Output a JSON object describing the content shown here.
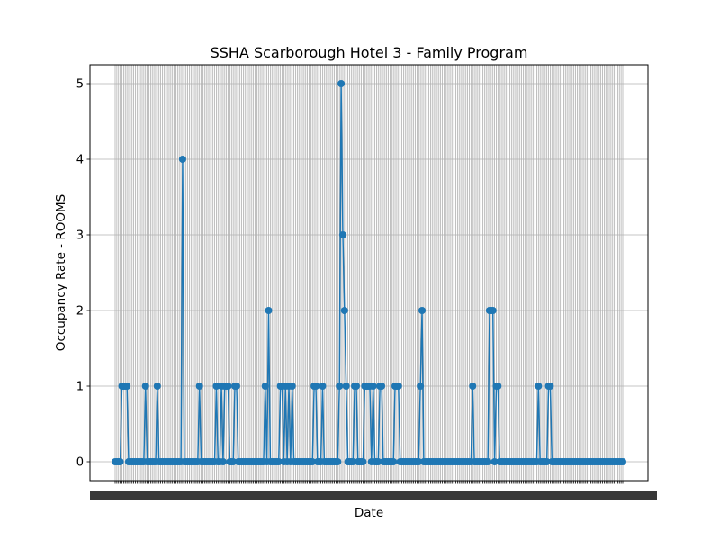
{
  "chart_data": {
    "type": "line",
    "title": "SSHA Scarborough Hotel 3 - Family Program",
    "xlabel": "Date",
    "ylabel": "Occupancy Rate - ROOMS",
    "ylim": [
      -0.25,
      5.25
    ],
    "y_ticks": [
      0,
      1,
      2,
      3,
      4,
      5
    ],
    "x_tick_labels_note": "tick labels illegible (overlapping)",
    "grid": true,
    "color": "#1f77b4",
    "marker": "circle",
    "series": [
      {
        "values": [
          0,
          0,
          0,
          0,
          1,
          1,
          1,
          1,
          0,
          0,
          0,
          0,
          0,
          0,
          0,
          0,
          0,
          0,
          1,
          0,
          0,
          0,
          0,
          0,
          0,
          1,
          0,
          0,
          0,
          0,
          0,
          0,
          0,
          0,
          0,
          0,
          0,
          0,
          0,
          0,
          4,
          0,
          0,
          0,
          0,
          0,
          0,
          0,
          0,
          0,
          1,
          0,
          0,
          0,
          0,
          0,
          0,
          0,
          0,
          0,
          1,
          0,
          0,
          1,
          0,
          1,
          1,
          1,
          0,
          0,
          0,
          1,
          1,
          0,
          0,
          0,
          0,
          0,
          0,
          0,
          0,
          0,
          0,
          0,
          0,
          0,
          0,
          0,
          0,
          1,
          0,
          2,
          0,
          0,
          0,
          0,
          0,
          0,
          1,
          1,
          0,
          1,
          0,
          1,
          0,
          1,
          0,
          0,
          0,
          0,
          0,
          0,
          0,
          0,
          0,
          0,
          0,
          0,
          1,
          1,
          0,
          0,
          0,
          1,
          0,
          0,
          0,
          0,
          0,
          0,
          0,
          0,
          0,
          1,
          5,
          3,
          2,
          1,
          0,
          0,
          0,
          0,
          1,
          1,
          0,
          0,
          0,
          0,
          1,
          1,
          1,
          1,
          0,
          1,
          0,
          0,
          0,
          1,
          1,
          0,
          0,
          0,
          0,
          0,
          0,
          0,
          1,
          1,
          1,
          0,
          0,
          0,
          0,
          0,
          0,
          0,
          0,
          0,
          0,
          0,
          0,
          1,
          2,
          0,
          0,
          0,
          0,
          0,
          0,
          0,
          0,
          0,
          0,
          0,
          0,
          0,
          0,
          0,
          0,
          0,
          0,
          0,
          0,
          0,
          0,
          0,
          0,
          0,
          0,
          0,
          0,
          0,
          1,
          0,
          0,
          0,
          0,
          0,
          0,
          0,
          0,
          0,
          2,
          2,
          2,
          0,
          1,
          1,
          0,
          0,
          0,
          0,
          0,
          0,
          0,
          0,
          0,
          0,
          0,
          0,
          0,
          0,
          0,
          0,
          0,
          0,
          0,
          0,
          0,
          0,
          0,
          1,
          0,
          0,
          0,
          0,
          0,
          1,
          1,
          0,
          0,
          0,
          0,
          0,
          0,
          0,
          0,
          0,
          0,
          0,
          0,
          0,
          0,
          0,
          0,
          0,
          0,
          0,
          0,
          0,
          0,
          0,
          0,
          0,
          0,
          0,
          0,
          0,
          0,
          0,
          0,
          0,
          0,
          0,
          0,
          0,
          0,
          0,
          0,
          0,
          0,
          0
        ]
      }
    ]
  }
}
